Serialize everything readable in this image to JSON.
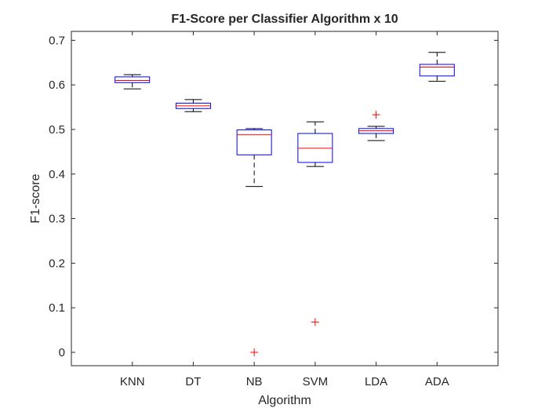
{
  "chart_data": {
    "type": "boxplot",
    "title": "F1-Score per Classifier Algorithm x 10",
    "xlabel": "Algorithm",
    "ylabel": "F1-score",
    "categories": [
      "KNN",
      "DT",
      "NB",
      "SVM",
      "LDA",
      "ADA"
    ],
    "ylim": [
      -0.03,
      0.72
    ],
    "yticks": [
      0,
      0.1,
      0.2,
      0.3,
      0.4,
      0.5,
      0.6,
      0.7
    ],
    "ytick_labels": [
      "0",
      "0.1",
      "0.2",
      "0.3",
      "0.4",
      "0.5",
      "0.6",
      "0.7"
    ],
    "grid": false,
    "boxes": [
      {
        "category": "KNN",
        "whisker_low": 0.591,
        "q1": 0.605,
        "median": 0.61,
        "q3": 0.618,
        "whisker_high": 0.623,
        "outliers": []
      },
      {
        "category": "DT",
        "whisker_low": 0.54,
        "q1": 0.547,
        "median": 0.553,
        "q3": 0.559,
        "whisker_high": 0.567,
        "outliers": []
      },
      {
        "category": "NB",
        "whisker_low": 0.372,
        "q1": 0.443,
        "median": 0.488,
        "q3": 0.499,
        "whisker_high": 0.502,
        "outliers": [
          0.0
        ]
      },
      {
        "category": "SVM",
        "whisker_low": 0.417,
        "q1": 0.426,
        "median": 0.458,
        "q3": 0.491,
        "whisker_high": 0.517,
        "outliers": [
          0.068
        ]
      },
      {
        "category": "LDA",
        "whisker_low": 0.475,
        "q1": 0.491,
        "median": 0.497,
        "q3": 0.502,
        "whisker_high": 0.507,
        "outliers": [
          0.533
        ]
      },
      {
        "category": "ADA",
        "whisker_low": 0.608,
        "q1": 0.62,
        "median": 0.64,
        "q3": 0.646,
        "whisker_high": 0.673,
        "outliers": []
      }
    ],
    "colors": {
      "box": "#0000ff",
      "median": "#ff0000",
      "whisker": "#000000",
      "outlier": "#ff0000",
      "axis": "#262626"
    }
  }
}
